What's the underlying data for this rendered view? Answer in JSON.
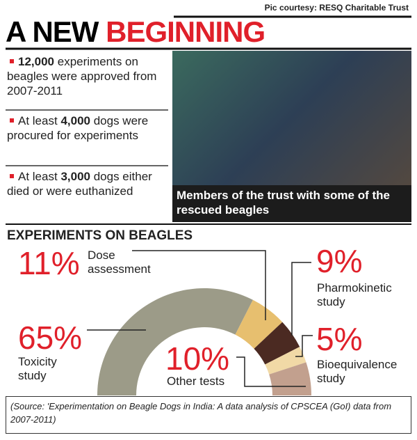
{
  "credit": "Pic courtesy: RESQ Charitable Trust",
  "title": {
    "black": "A NEW",
    "red": "BEGINNING"
  },
  "bullets": [
    {
      "number": "12,000",
      "text": "experiments on beagles were approved from 2007-2011"
    },
    {
      "pre": "At least",
      "number": "4,000",
      "text": "dogs were procured for experiments"
    },
    {
      "pre": "At least",
      "number": "3,000",
      "text": "dogs either died or were euthanized"
    }
  ],
  "photo_caption": "Members of the trust with some of the rescued beagles",
  "chart_data": {
    "type": "pie",
    "shape": "half-donut",
    "title": "EXPERIMENTS ON BEAGLES",
    "categories": [
      "Toxicity study",
      "Dose assessment",
      "Pharmokinetic study",
      "Bioequivalence study",
      "Other tests"
    ],
    "values": [
      65,
      11,
      9,
      5,
      10
    ],
    "value_labels": [
      "65%",
      "11%",
      "9%",
      "5%",
      "10%"
    ],
    "colors": [
      "#9c9b88",
      "#e7bf6f",
      "#4b2a22",
      "#f1d9a6",
      "#c2a08e"
    ]
  },
  "source": "(Source: 'Experimentation on Beagle Dogs in India: A data analysis of CPSCEA (GoI) data from 2007-2011)"
}
